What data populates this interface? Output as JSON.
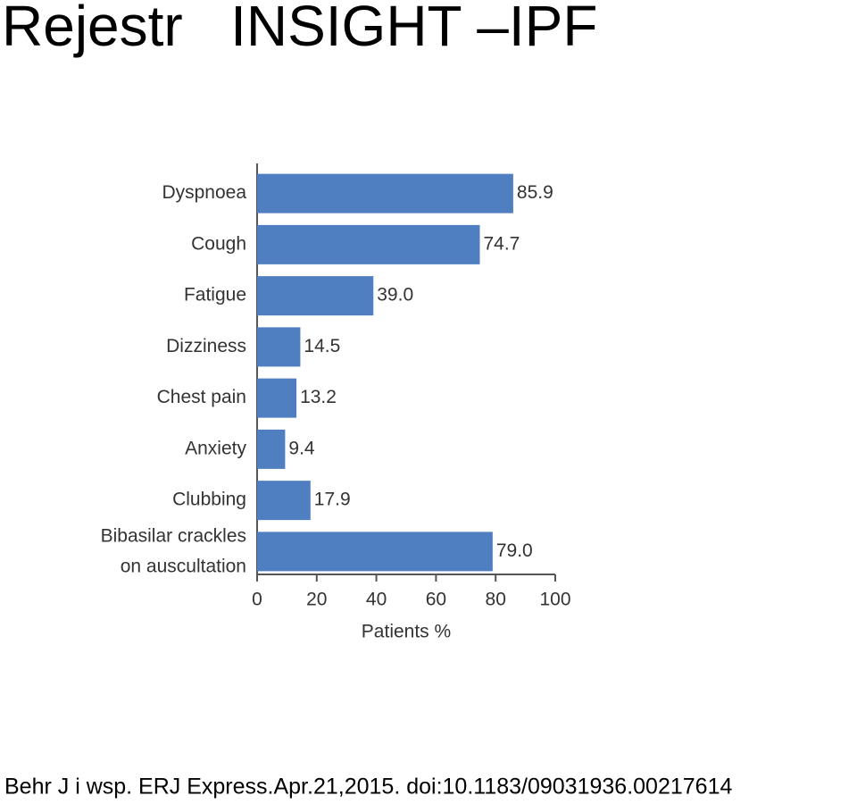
{
  "chart_data": {
    "type": "hbar",
    "title": "Rejestr   INSIGHT –IPF",
    "categories": [
      "Dyspnoea",
      "Cough",
      "Fatigue",
      "Dizziness",
      "Chest pain",
      "Anxiety",
      "Clubbing",
      "Bibasilar crackles on auscultation"
    ],
    "values": [
      85.9,
      74.7,
      39.0,
      14.5,
      13.2,
      9.4,
      17.9,
      79.0
    ],
    "value_labels": [
      "85.9",
      "74.7",
      "39.0",
      "14.5",
      "13.2",
      "9.4",
      "17.9",
      "79.0"
    ],
    "color": "#4f7fc0",
    "xlabel": "Patients %",
    "xlim": [
      0,
      100
    ],
    "xticks": [
      0,
      20,
      40,
      60,
      80,
      100
    ],
    "grid": false,
    "source": "Behr J i wsp. ERJ Express.Apr.21,2015. doi:10.1183/09031936.00217614"
  }
}
